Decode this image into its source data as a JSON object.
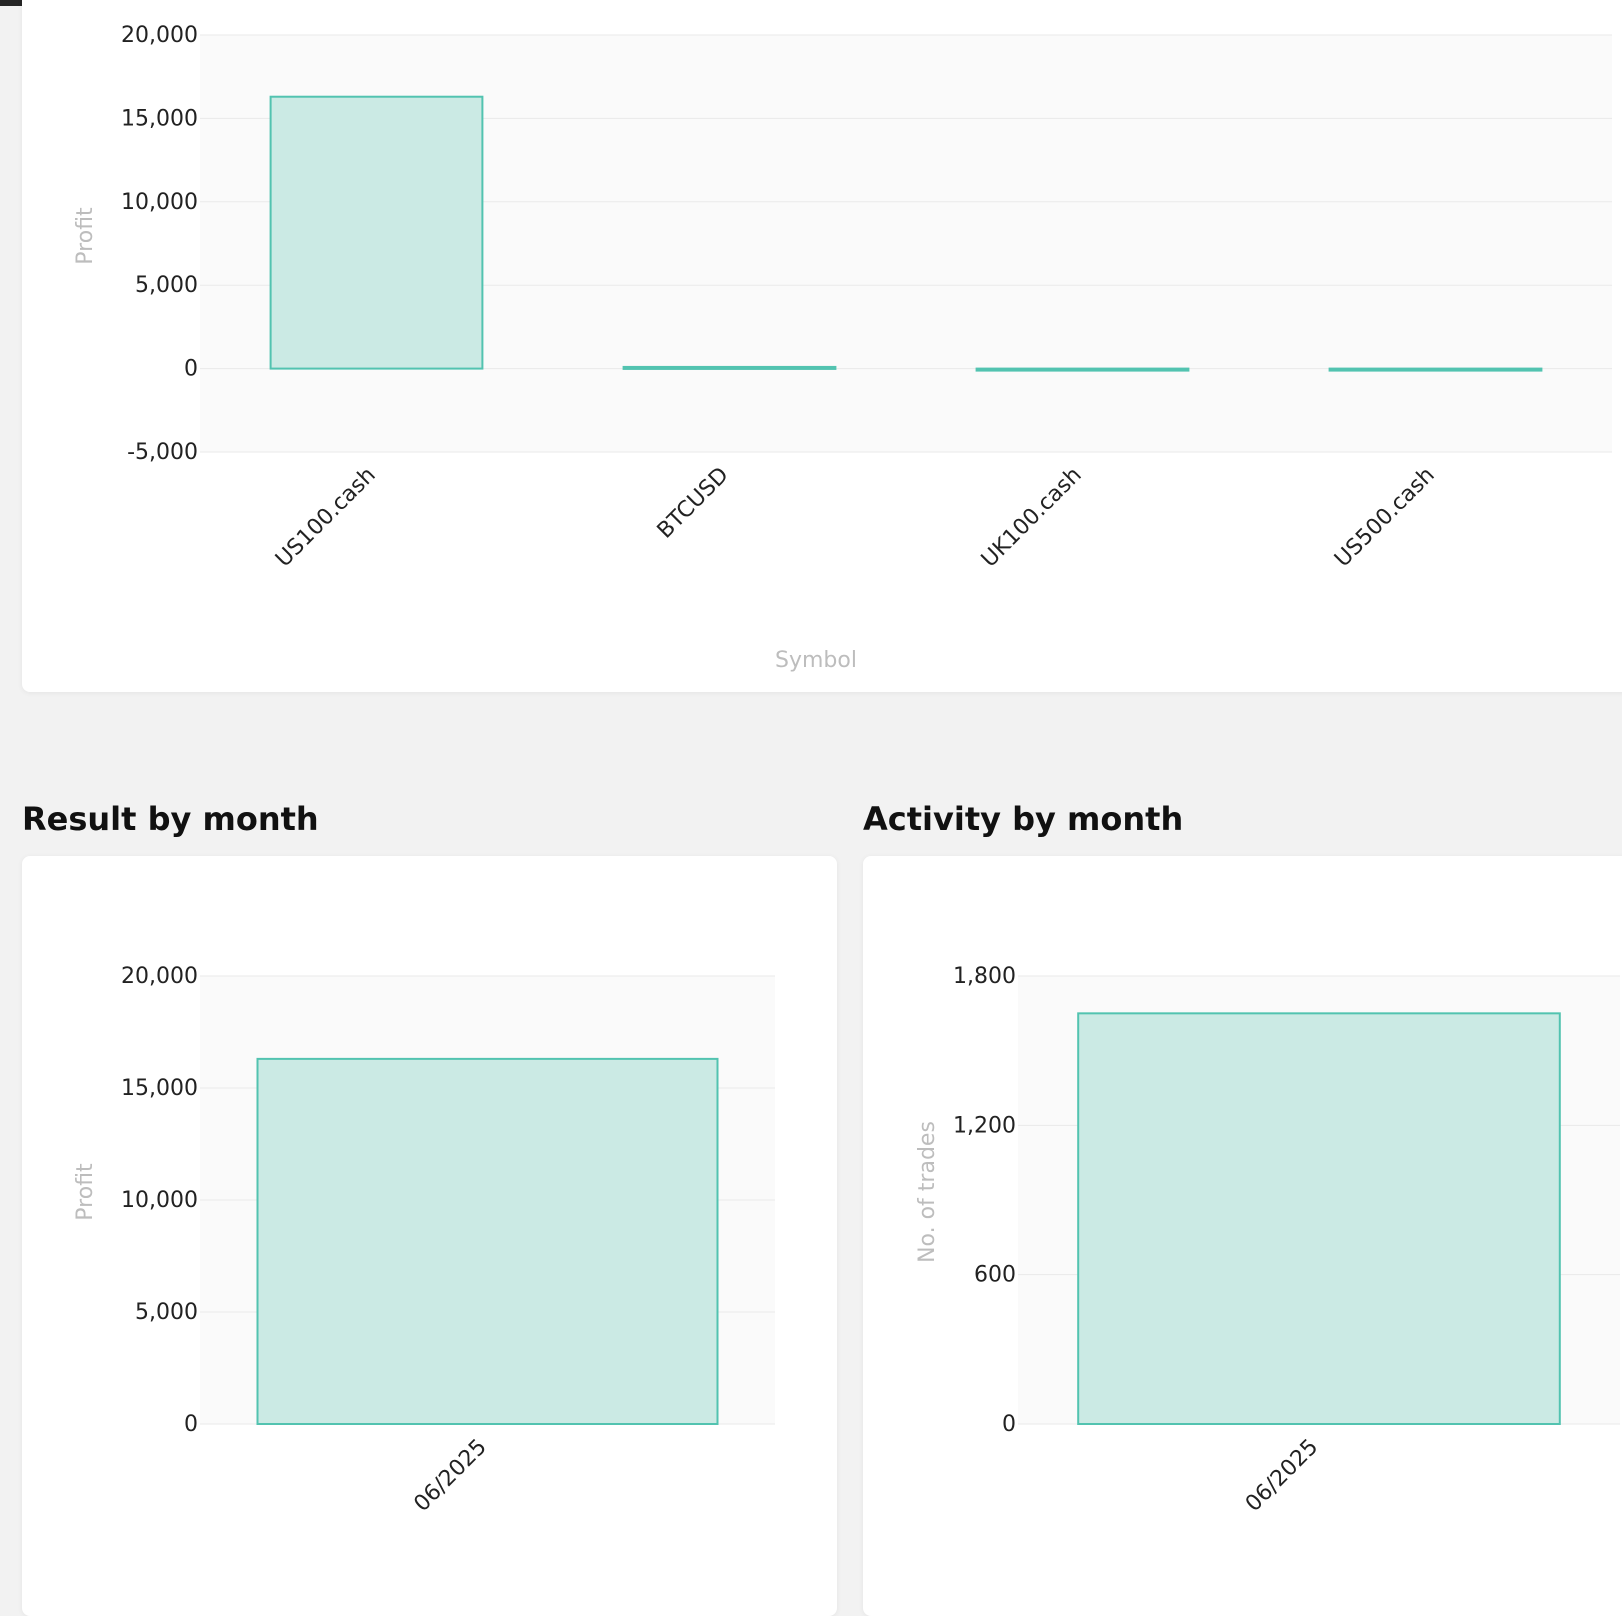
{
  "colors": {
    "bar_fill": "#cbeae4",
    "bar_stroke": "#52c3b0",
    "axis_title": "#bdbdbd",
    "page_bg": "#f2f2f2"
  },
  "sections": {
    "result_title": "Result by month",
    "activity_title": "Activity by month"
  },
  "chart_data": [
    {
      "id": "symbol",
      "type": "bar",
      "categories": [
        "US100.cash",
        "BTCUSD",
        "UK100.cash",
        "US500.cash"
      ],
      "values": [
        16300,
        100,
        -50,
        -80
      ],
      "xlabel": "Symbol",
      "ylabel": "Profit",
      "ylim": [
        -5000,
        20000
      ],
      "yticks": [
        -5000,
        0,
        5000,
        10000,
        15000,
        20000
      ],
      "ytick_labels": [
        "-5,000",
        "0",
        "5,000",
        "10,000",
        "15,000",
        "20,000"
      ],
      "grid": true
    },
    {
      "id": "result",
      "type": "bar",
      "categories": [
        "06/2025"
      ],
      "values": [
        16300
      ],
      "xlabel": "",
      "ylabel": "Profit",
      "ylim": [
        0,
        20000
      ],
      "yticks": [
        0,
        5000,
        10000,
        15000,
        20000
      ],
      "ytick_labels": [
        "0",
        "5,000",
        "10,000",
        "15,000",
        "20,000"
      ],
      "grid": true
    },
    {
      "id": "activity",
      "type": "bar",
      "categories": [
        "06/2025"
      ],
      "values": [
        1650
      ],
      "xlabel": "",
      "ylabel": "No. of trades",
      "ylim": [
        0,
        1800
      ],
      "yticks": [
        0,
        600,
        1200,
        1800
      ],
      "ytick_labels": [
        "0",
        "600",
        "1,200",
        "1,800"
      ],
      "grid": true
    }
  ]
}
